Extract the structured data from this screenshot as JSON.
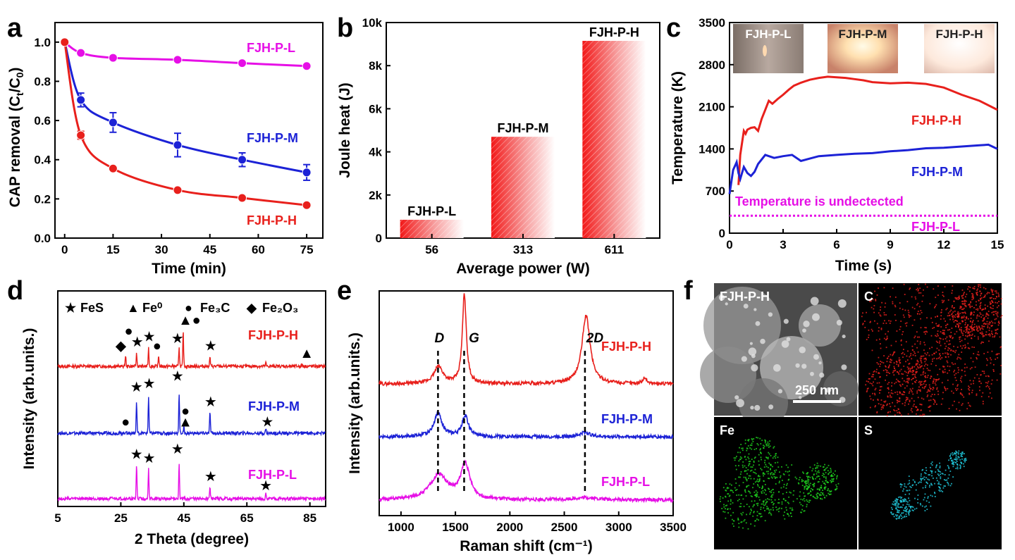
{
  "panels": {
    "a": {
      "letter": "a",
      "chart_data": {
        "type": "scatter",
        "xlabel": "Time (min)",
        "ylabel": "CAP removal (C_t/C_0)",
        "xlim": [
          -3,
          80
        ],
        "ylim": [
          0,
          1.1
        ],
        "xticks": [
          0,
          15,
          30,
          45,
          60,
          75
        ],
        "yticks": [
          0.0,
          0.2,
          0.4,
          0.6,
          0.8,
          1.0
        ],
        "x": [
          0,
          5,
          15,
          35,
          55,
          75
        ],
        "series": [
          {
            "name": "FJH-P-L",
            "color": "#e60fe6",
            "values": [
              1.0,
              0.945,
              0.92,
              0.91,
              0.893,
              0.878
            ],
            "err": [
              0,
              0.01,
              0.01,
              0.01,
              0.01,
              0.01
            ]
          },
          {
            "name": "FJH-P-M",
            "color": "#1c22d6",
            "values": [
              1.0,
              0.705,
              0.59,
              0.475,
              0.4,
              0.335
            ],
            "err": [
              0,
              0.035,
              0.05,
              0.06,
              0.035,
              0.04
            ]
          },
          {
            "name": "FJH-P-H",
            "color": "#e8201c",
            "values": [
              1.0,
              0.525,
              0.355,
              0.245,
              0.205,
              0.168
            ],
            "err": [
              0,
              0.02,
              0.01,
              0.01,
              0.01,
              0.01
            ]
          }
        ]
      }
    },
    "b": {
      "letter": "b",
      "chart_data": {
        "type": "bar",
        "xlabel": "Average power (W)",
        "ylabel": "Joule heat (J)",
        "categories": [
          "56",
          "313",
          "611"
        ],
        "values": [
          850,
          4700,
          9150
        ],
        "bar_labels": [
          "FJH-P-L",
          "FJH-P-M",
          "FJH-P-H"
        ],
        "ylim": [
          0,
          10000
        ],
        "yticks": [
          0,
          2000,
          4000,
          6000,
          8000,
          10000
        ],
        "ytick_labels": [
          "0",
          "2k",
          "4k",
          "6k",
          "8k",
          "10k"
        ],
        "color": "#e8201c"
      }
    },
    "c": {
      "letter": "c",
      "chart_data": {
        "type": "line",
        "xlabel": "Time (s)",
        "ylabel": "Temperature (K)",
        "xlim": [
          0,
          15
        ],
        "ylim": [
          0,
          3500
        ],
        "xticks": [
          0,
          3,
          6,
          9,
          12,
          15
        ],
        "yticks": [
          0,
          700,
          1400,
          2100,
          2800,
          3500
        ],
        "series": [
          {
            "name": "FJH-P-H",
            "color": "#e8201c",
            "x": [
              0.5,
              0.6,
              0.8,
              0.9,
              1.0,
              1.2,
              1.4,
              1.6,
              1.8,
              2.0,
              2.2,
              2.4,
              2.7,
              3.0,
              3.3,
              3.6,
              4.0,
              4.5,
              5.0,
              5.5,
              6.0,
              6.5,
              7.0,
              7.5,
              8.0,
              9.0,
              10.0,
              11.0,
              12.0,
              13.0,
              14.0,
              15.0
            ],
            "values": [
              800,
              1300,
              1700,
              1650,
              1720,
              1750,
              1760,
              1700,
              1900,
              2050,
              2200,
              2150,
              2230,
              2300,
              2380,
              2450,
              2500,
              2550,
              2580,
              2600,
              2590,
              2580,
              2560,
              2540,
              2510,
              2490,
              2500,
              2480,
              2420,
              2300,
              2200,
              2050
            ]
          },
          {
            "name": "FJH-P-M",
            "color": "#1c22d6",
            "x": [
              0.0,
              0.2,
              0.4,
              0.5,
              0.6,
              0.8,
              1.0,
              1.2,
              1.4,
              1.6,
              2.0,
              2.5,
              3.0,
              3.5,
              4.0,
              4.5,
              5.0,
              6.0,
              7.0,
              8.0,
              9.0,
              10.0,
              11.0,
              12.0,
              13.0,
              14.0,
              14.5,
              15.0
            ],
            "values": [
              650,
              1050,
              1180,
              1000,
              900,
              1100,
              1000,
              950,
              1020,
              1150,
              1300,
              1250,
              1280,
              1300,
              1200,
              1240,
              1280,
              1300,
              1320,
              1330,
              1360,
              1380,
              1410,
              1420,
              1440,
              1460,
              1470,
              1400
            ]
          },
          {
            "name": "Temperature is undectected",
            "color": "#e60fe6",
            "dashed": true,
            "x": [
              0,
              15
            ],
            "values": [
              290,
              290
            ]
          }
        ],
        "photos": [
          "FJH-P-L",
          "FJH-P-M",
          "FJH-P-H"
        ],
        "bottom_label": "FJH-P-L"
      }
    },
    "d": {
      "letter": "d",
      "chart_data": {
        "type": "line",
        "xlabel": "2 Theta (degree)",
        "ylabel": "Intensity (arb.units.)",
        "xlim": [
          5,
          90
        ],
        "xticks": [
          5,
          25,
          45,
          65,
          85
        ],
        "legend": [
          {
            "symbol": "★",
            "text": "FeS"
          },
          {
            "symbol": "▲",
            "text": "Fe⁰"
          },
          {
            "symbol": "●",
            "text": "Fe₃C"
          },
          {
            "symbol": "◆",
            "text": "Fe₂O₃"
          }
        ],
        "series": [
          {
            "name": "FJH-P-H",
            "color": "#e8201c",
            "peaks": [
              [
                26.5,
                0.3
              ],
              [
                30.0,
                0.35
              ],
              [
                33.8,
                0.5
              ],
              [
                37.0,
                0.3
              ],
              [
                43.5,
                0.55
              ],
              [
                44.8,
                0.95
              ],
              [
                53.3,
                0.25
              ],
              [
                71.0,
                0.1
              ],
              [
                82.5,
                0.05
              ]
            ],
            "markers": [
              [
                "◆",
                25.0,
                0.55
              ],
              [
                "●",
                27.5,
                0.95
              ],
              [
                "★",
                30.2,
                0.65
              ],
              [
                "★",
                34.0,
                0.8
              ],
              [
                "●",
                36.5,
                0.55
              ],
              [
                "★",
                43.0,
                0.75
              ],
              [
                "▲",
                45.5,
                1.25
              ],
              [
                "●",
                49.0,
                1.25
              ],
              [
                "★",
                53.5,
                0.55
              ],
              [
                "▲",
                84.0,
                0.35
              ]
            ]
          },
          {
            "name": "FJH-P-M",
            "color": "#1c22d6",
            "peaks": [
              [
                26.5,
                0.05
              ],
              [
                30.0,
                0.85
              ],
              [
                33.8,
                1.0
              ],
              [
                43.5,
                1.1
              ],
              [
                45.0,
                0.15
              ],
              [
                53.3,
                0.6
              ],
              [
                71.0,
                0.12
              ],
              [
                84.0,
                0.04
              ]
            ],
            "markers": [
              [
                "●",
                26.5,
                0.3
              ],
              [
                "★",
                30.0,
                1.25
              ],
              [
                "★",
                34.0,
                1.35
              ],
              [
                "★",
                43.0,
                1.55
              ],
              [
                "●",
                45.5,
                0.6
              ],
              [
                "▲",
                45.5,
                0.3
              ],
              [
                "★",
                53.5,
                0.85
              ],
              [
                "★",
                71.5,
                0.3
              ]
            ]
          },
          {
            "name": "FJH-P-L",
            "color": "#e60fe6",
            "peaks": [
              [
                30.0,
                0.9
              ],
              [
                33.8,
                0.8
              ],
              [
                43.5,
                1.0
              ],
              [
                53.3,
                0.3
              ],
              [
                71.0,
                0.12
              ]
            ],
            "markers": [
              [
                "★",
                30.0,
                1.2
              ],
              [
                "★",
                34.0,
                1.1
              ],
              [
                "★",
                43.0,
                1.35
              ],
              [
                "★",
                53.5,
                0.6
              ],
              [
                "★",
                71.0,
                0.35
              ]
            ]
          }
        ]
      }
    },
    "e": {
      "letter": "e",
      "chart_data": {
        "type": "line",
        "xlabel": "Raman shift (cm⁻¹)",
        "ylabel": "Intensity (arb.units.)",
        "xlim": [
          800,
          3500
        ],
        "xticks": [
          1000,
          1500,
          2000,
          2500,
          3000,
          3500
        ],
        "band_labels": [
          {
            "text": "D",
            "x": 1340
          },
          {
            "text": "G",
            "x": 1580
          },
          {
            "text": "2D",
            "x": 2690
          }
        ],
        "series": [
          {
            "name": "FJH-P-H",
            "color": "#e8201c",
            "baseline": 0.12,
            "bands": [
              [
                1345,
                50,
                0.22
              ],
              [
                1582,
                22,
                1.15
              ],
              [
                2700,
                45,
                0.88
              ],
              [
                3240,
                20,
                0.08
              ]
            ]
          },
          {
            "name": "FJH-P-M",
            "color": "#1c22d6",
            "baseline": 0.02,
            "bands": [
              [
                1340,
                45,
                0.3
              ],
              [
                1590,
                35,
                0.27
              ],
              [
                2690,
                50,
                0.06
              ]
            ]
          },
          {
            "name": "FJH-P-L",
            "color": "#e60fe6",
            "baseline": 0.05,
            "bands": [
              [
                1350,
                100,
                0.32
              ],
              [
                1590,
                50,
                0.45
              ],
              [
                2700,
                150,
                0.03
              ]
            ]
          }
        ]
      }
    },
    "f": {
      "letter": "f",
      "tiles": [
        {
          "label": "FJH-P-H",
          "kind": "sem"
        },
        {
          "label": "C",
          "kind": "map",
          "color": "#e8201c"
        },
        {
          "label": "Fe",
          "kind": "map",
          "color": "#1fd11f"
        },
        {
          "label": "S",
          "kind": "map",
          "color": "#20c8dc"
        }
      ],
      "scale_bar": "250 nm"
    }
  }
}
